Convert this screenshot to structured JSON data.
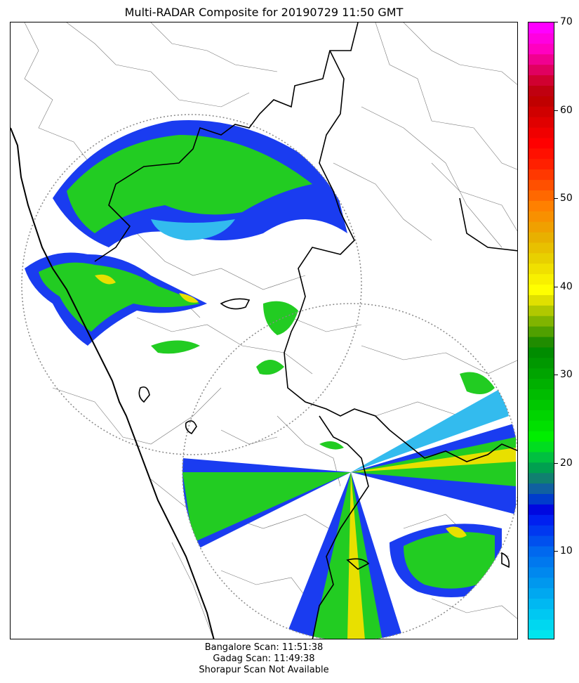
{
  "title": "Multi-RADAR Composite for 20190729 11:50 GMT",
  "colorbar": {
    "min": 0,
    "max": 70,
    "tick_labels": [
      "10",
      "20",
      "30",
      "40",
      "50",
      "60",
      "70"
    ],
    "tick_values": [
      10,
      20,
      30,
      40,
      50,
      60,
      70
    ],
    "colors": [
      "#00e5ee",
      "#00d7f0",
      "#00c8f2",
      "#00b8f2",
      "#00a8f0",
      "#0098ee",
      "#0088ee",
      "#0078ee",
      "#0068ee",
      "#0050ee",
      "#0038f0",
      "#0020f0",
      "#0008e0",
      "#003ccc",
      "#1060a0",
      "#108070",
      "#00a050",
      "#00c040",
      "#00dd20",
      "#00ee00",
      "#00e000",
      "#00d400",
      "#00c800",
      "#00bc00",
      "#00b000",
      "#00a400",
      "#009800",
      "#008c00",
      "#208c00",
      "#50a000",
      "#80b400",
      "#b0c800",
      "#e0e000",
      "#ffff00",
      "#f8f000",
      "#f0e000",
      "#e8d000",
      "#e8c000",
      "#e8b000",
      "#f0a000",
      "#f89000",
      "#ff8000",
      "#ff6800",
      "#ff5000",
      "#ff3800",
      "#ff2000",
      "#ff1000",
      "#ff0000",
      "#f00000",
      "#e00000",
      "#d00000",
      "#c00000",
      "#c00010",
      "#d00030",
      "#e00060",
      "#f00090",
      "#ff00c0",
      "#ff00e0",
      "#ff00ff"
    ]
  },
  "map": {
    "overlay_colors": {
      "light_blue": "#33bbee",
      "blue": "#1a3cf0",
      "green": "#22cc22",
      "bright_green": "#22ee22",
      "yellow": "#e8e000",
      "orange": "#f0a000",
      "border_thin": "#666666",
      "border_thick": "#000000",
      "range_ring": "#888888"
    }
  },
  "footer": {
    "line1": "Bangalore Scan: 11:51:38",
    "line2": "Gadag Scan: 11:49:38",
    "line3": "Shorapur Scan Not Available"
  }
}
